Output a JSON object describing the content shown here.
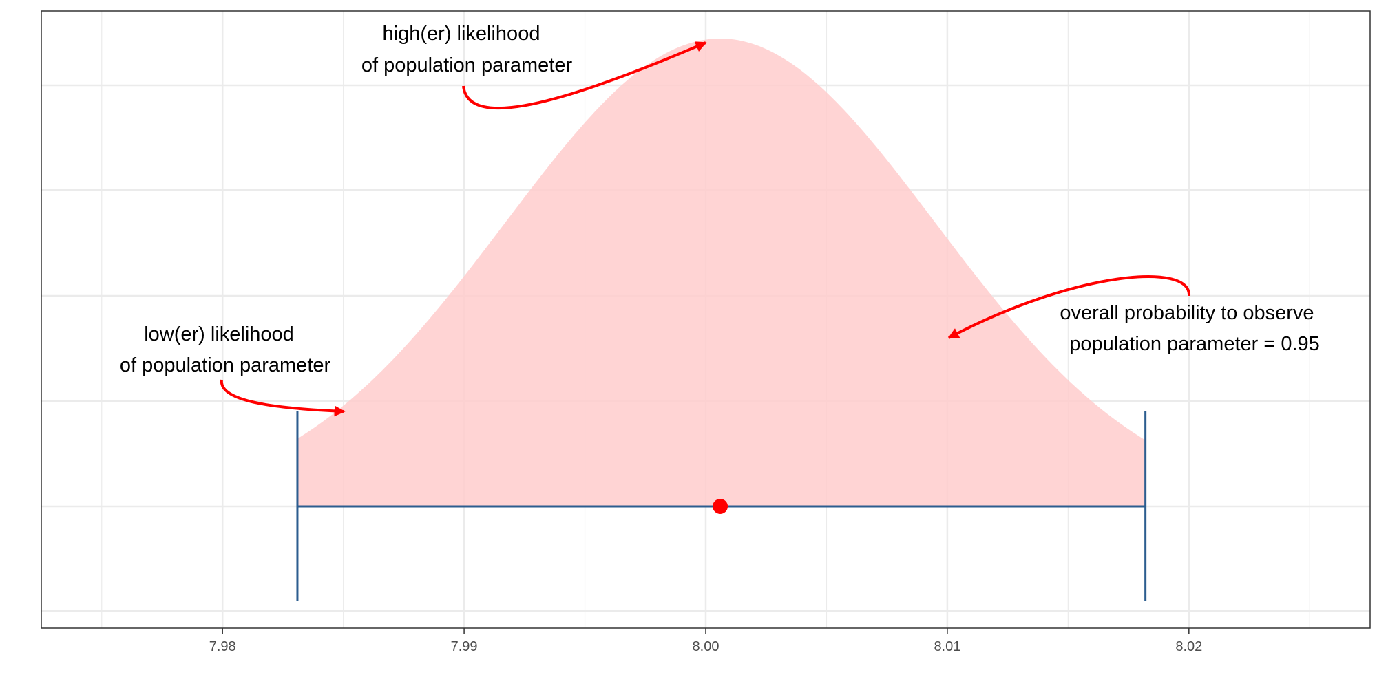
{
  "chart_data": {
    "type": "area",
    "title": "",
    "xlabel": "",
    "ylabel": "",
    "xlim": [
      7.9725,
      8.0275
    ],
    "x_ticks": [
      "7.98",
      "7.99",
      "8.00",
      "8.01",
      "8.02"
    ],
    "x_tick_values": [
      7.98,
      7.99,
      8.0,
      8.01,
      8.02
    ],
    "x_minor_values": [
      7.975,
      7.985,
      7.995,
      8.005,
      8.015,
      8.025
    ],
    "grid": true,
    "y_axis_labels_shown": false,
    "point_estimate": 8.0006,
    "confidence_interval": {
      "lower": 7.9831,
      "upper": 8.0182,
      "level": 0.95
    },
    "density": {
      "mean": 8.0006,
      "sd": 0.0089,
      "relative_height_at_bounds": 0.34
    },
    "annotations": [
      {
        "lines": [
          "high(er) likelihood",
          "of population parameter"
        ],
        "points_to": "density peak"
      },
      {
        "lines": [
          "low(er) likelihood",
          "of population parameter"
        ],
        "points_to": "left tail of density"
      },
      {
        "lines": [
          "overall probability to observe",
          "population parameter = 0.95"
        ],
        "points_to": "shaded area"
      }
    ],
    "colors": {
      "density_fill": "#ffcccc",
      "interval": "#2c5d8f",
      "point": "#ff0000",
      "arrows": "#ff0000",
      "grid": "#ebebeb",
      "panel_border": "#333333"
    }
  }
}
